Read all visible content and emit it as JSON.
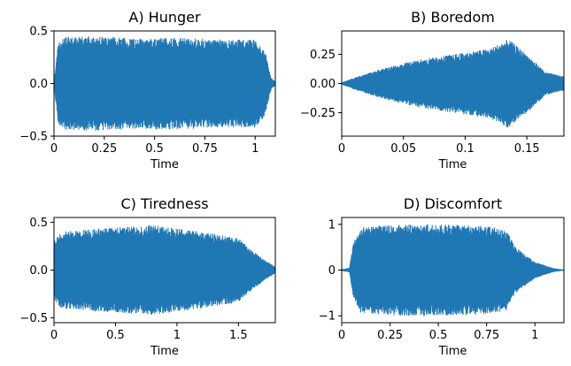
{
  "colors": {
    "series": "#1f77b4"
  },
  "chart_data": [
    {
      "type": "line",
      "title": "A) Hunger",
      "xlabel": "Time",
      "ylabel": "",
      "xlim": [
        0,
        1.1
      ],
      "ylim": [
        -0.5,
        0.5
      ],
      "xticks": [
        0,
        0.25,
        0.5,
        0.75,
        1
      ],
      "xtick_labels": [
        "0",
        "0.25",
        "0.5",
        "0.75",
        "1"
      ],
      "yticks": [
        0.5,
        0.0,
        -0.5
      ],
      "ytick_labels": [
        "0.5",
        "0.0",
        "−0.5"
      ],
      "envelope": {
        "x": [
          0,
          0.02,
          0.05,
          0.2,
          0.4,
          0.6,
          0.8,
          1.0,
          1.05,
          1.08,
          1.1
        ],
        "amplitude": [
          0.01,
          0.38,
          0.44,
          0.45,
          0.43,
          0.44,
          0.42,
          0.42,
          0.3,
          0.05,
          0.02
        ]
      }
    },
    {
      "type": "line",
      "title": "B) Boredom",
      "xlabel": "Time",
      "ylabel": "",
      "xlim": [
        0,
        0.18
      ],
      "ylim": [
        -0.45,
        0.45
      ],
      "xticks": [
        0,
        0.05,
        0.1,
        0.15
      ],
      "xtick_labels": [
        "0",
        "0.05",
        "0.1",
        "0.15"
      ],
      "yticks": [
        0.25,
        0.0,
        -0.25
      ],
      "ytick_labels": [
        "0.25",
        "0.00",
        "−0.25"
      ],
      "envelope": {
        "x": [
          0,
          0.01,
          0.03,
          0.06,
          0.09,
          0.12,
          0.135,
          0.15,
          0.165,
          0.18
        ],
        "amplitude": [
          0.01,
          0.05,
          0.12,
          0.2,
          0.25,
          0.3,
          0.38,
          0.25,
          0.1,
          0.06
        ]
      }
    },
    {
      "type": "line",
      "title": "C) Tiredness",
      "xlabel": "Time",
      "ylabel": "",
      "xlim": [
        0,
        1.8
      ],
      "ylim": [
        -0.55,
        0.55
      ],
      "xticks": [
        0,
        0.5,
        1,
        1.5
      ],
      "xtick_labels": [
        "0",
        "0.5",
        "1",
        "1.5"
      ],
      "yticks": [
        0.5,
        0.0,
        -0.5
      ],
      "ytick_labels": [
        "0.5",
        "0.0",
        "−0.5"
      ],
      "envelope": {
        "x": [
          0,
          0.05,
          0.3,
          0.8,
          1.2,
          1.5,
          1.6,
          1.7,
          1.8
        ],
        "amplitude": [
          0.3,
          0.4,
          0.43,
          0.47,
          0.4,
          0.34,
          0.22,
          0.12,
          0.03
        ]
      }
    },
    {
      "type": "line",
      "title": "D) Discomfort",
      "xlabel": "Time",
      "ylabel": "",
      "xlim": [
        0,
        1.15
      ],
      "ylim": [
        -1.15,
        1.15
      ],
      "xticks": [
        0,
        0.25,
        0.5,
        0.75,
        1
      ],
      "xtick_labels": [
        "0",
        "0.25",
        "0.5",
        "0.75",
        "1"
      ],
      "yticks": [
        1,
        0,
        -1
      ],
      "ytick_labels": [
        "1",
        "0",
        "−1"
      ],
      "envelope": {
        "x": [
          0,
          0.04,
          0.06,
          0.1,
          0.3,
          0.5,
          0.7,
          0.85,
          0.9,
          1.0,
          1.1,
          1.15
        ],
        "amplitude": [
          0.02,
          0.05,
          0.6,
          0.95,
          1.0,
          1.0,
          0.98,
          0.9,
          0.5,
          0.18,
          0.04,
          0.01
        ]
      }
    }
  ]
}
